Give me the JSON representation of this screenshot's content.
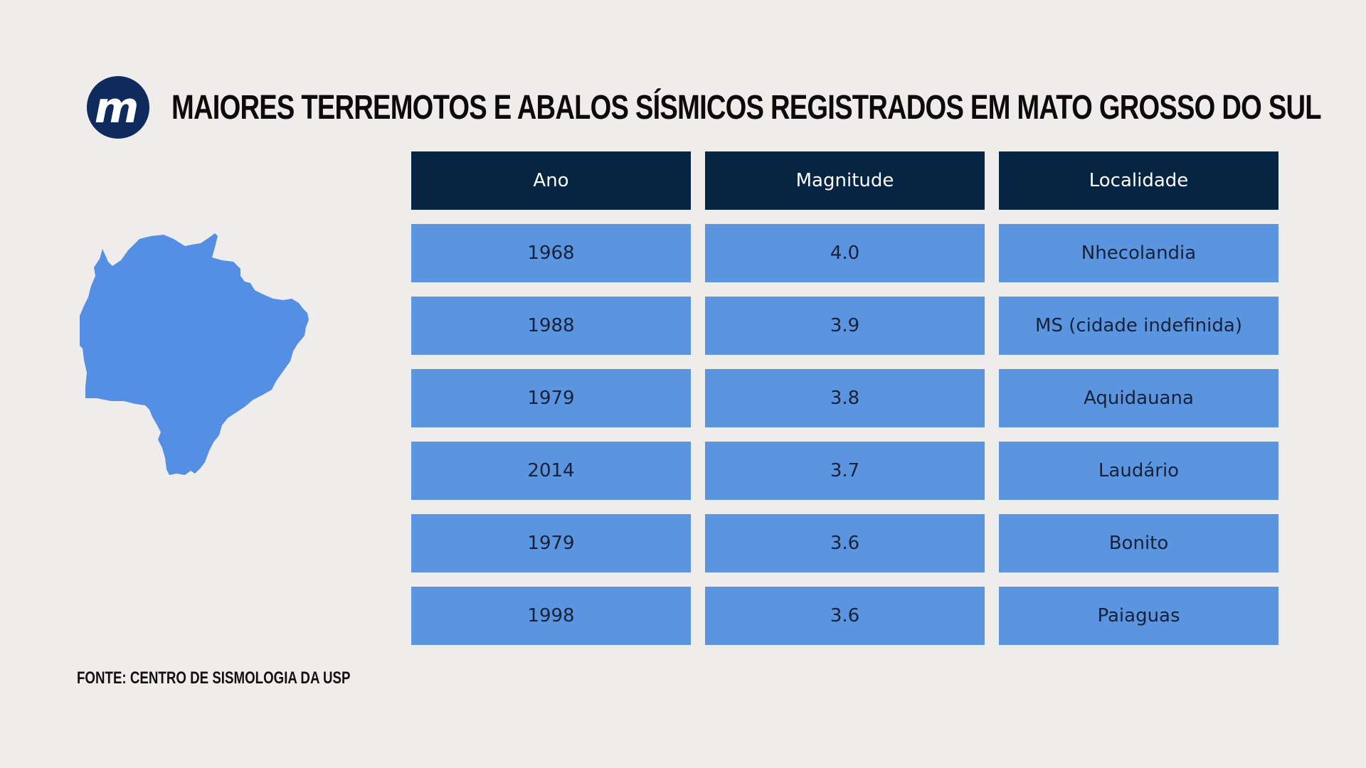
{
  "brand": {
    "logo_letter": "m",
    "logo_color": "#0f2a5c"
  },
  "title": "MAIORES TERREMOTOS E ABALOS SÍSMICOS REGISTRADOS EM MATO GROSSO DO SUL",
  "map": {
    "icon": "mato-grosso-do-sul-map-icon",
    "color": "#548fe3"
  },
  "colors": {
    "background": "#efedec",
    "header": "#062543",
    "cells": "#5b95df"
  },
  "chart_data": {
    "type": "table",
    "title": "MAIORES TERREMOTOS E ABALOS SÍSMICOS REGISTRADOS EM MATO GROSSO DO SUL",
    "columns": [
      "Ano",
      "Magnitude",
      "Localidade"
    ],
    "rows": [
      [
        "1968",
        "4.0",
        "Nhecolandia"
      ],
      [
        "1988",
        "3.9",
        "MS (cidade indefinida)"
      ],
      [
        "1979",
        "3.8",
        "Aquidauana"
      ],
      [
        "2014",
        "3.7",
        "Laudário"
      ],
      [
        "1979",
        "3.6",
        "Bonito"
      ],
      [
        "1998",
        "3.6",
        "Paiaguas"
      ]
    ]
  },
  "source": "FONTE: CENTRO DE SISMOLOGIA DA USP"
}
